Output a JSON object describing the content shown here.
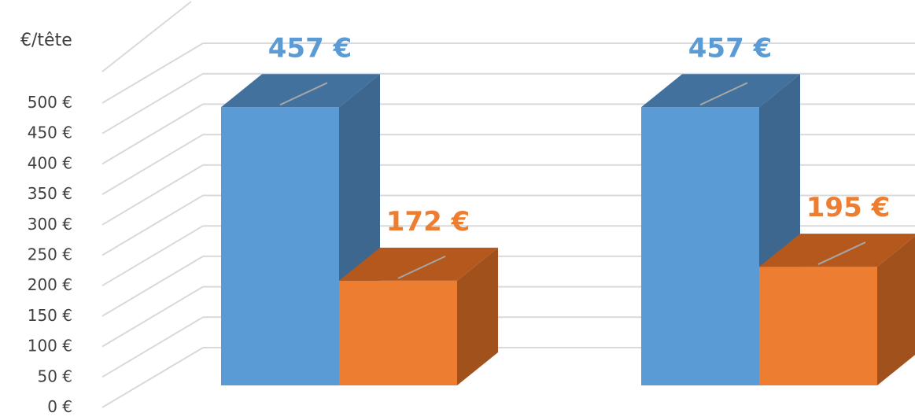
{
  "chart_data": {
    "type": "bar",
    "ylabel": "€/tête",
    "ylim": [
      0,
      500
    ],
    "ytick_step": 50,
    "ytick_labels": [
      "0 €",
      "50 €",
      "100 €",
      "150 €",
      "200 €",
      "250 €",
      "300 €",
      "350 €",
      "400 €",
      "450 €",
      "500 €"
    ],
    "grid": true,
    "three_d": true,
    "categories": [
      "",
      ""
    ],
    "series": [
      {
        "color": "#5b9bd5",
        "side_color": "#3e6790",
        "top_color": "#41719c",
        "values": [
          457,
          457
        ],
        "data_labels": [
          "457 €",
          "457 €"
        ]
      },
      {
        "color": "#ed7d31",
        "side_color": "#a1521c",
        "top_color": "#b5581e",
        "values": [
          172,
          195
        ],
        "data_labels": [
          "172 €",
          "195 €"
        ]
      }
    ]
  }
}
